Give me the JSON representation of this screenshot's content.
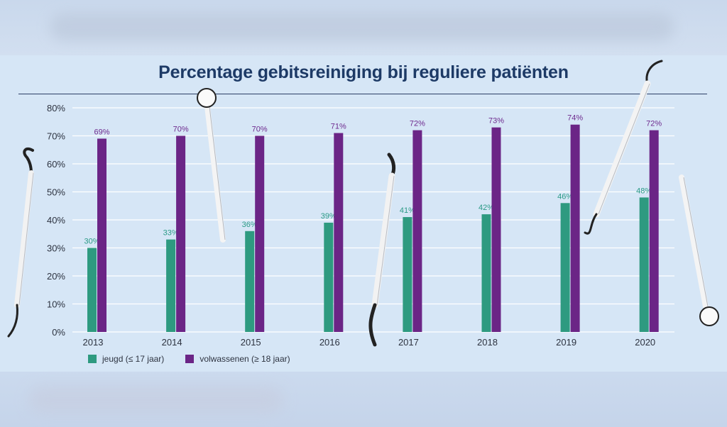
{
  "chart_data": {
    "type": "bar",
    "title": "Percentage gebitsreiniging bij reguliere patiënten",
    "categories": [
      "2013",
      "2014",
      "2015",
      "2016",
      "2017",
      "2018",
      "2019",
      "2020"
    ],
    "series": [
      {
        "name": "jeugd (≤ 17 jaar)",
        "color": "#2e9a80",
        "values": [
          30,
          33,
          36,
          39,
          41,
          42,
          46,
          48
        ],
        "labels": [
          "30%",
          "33%",
          "36%",
          "39%",
          "41%",
          "42%",
          "46%",
          "48%"
        ]
      },
      {
        "name": "volwassenen (≥ 18 jaar)",
        "color": "#6b2586",
        "values": [
          69,
          70,
          70,
          71,
          72,
          73,
          74,
          72
        ],
        "labels": [
          "69%",
          "70%",
          "70%",
          "71%",
          "72%",
          "73%",
          "74%",
          "72%"
        ]
      }
    ],
    "yticks": [
      "0%",
      "10%",
      "20%",
      "30%",
      "40%",
      "50%",
      "60%",
      "70%",
      "80%"
    ],
    "ylim": [
      0,
      80
    ],
    "xlabel": "",
    "ylabel": "",
    "grid": true,
    "legend_position": "bottom-left"
  }
}
